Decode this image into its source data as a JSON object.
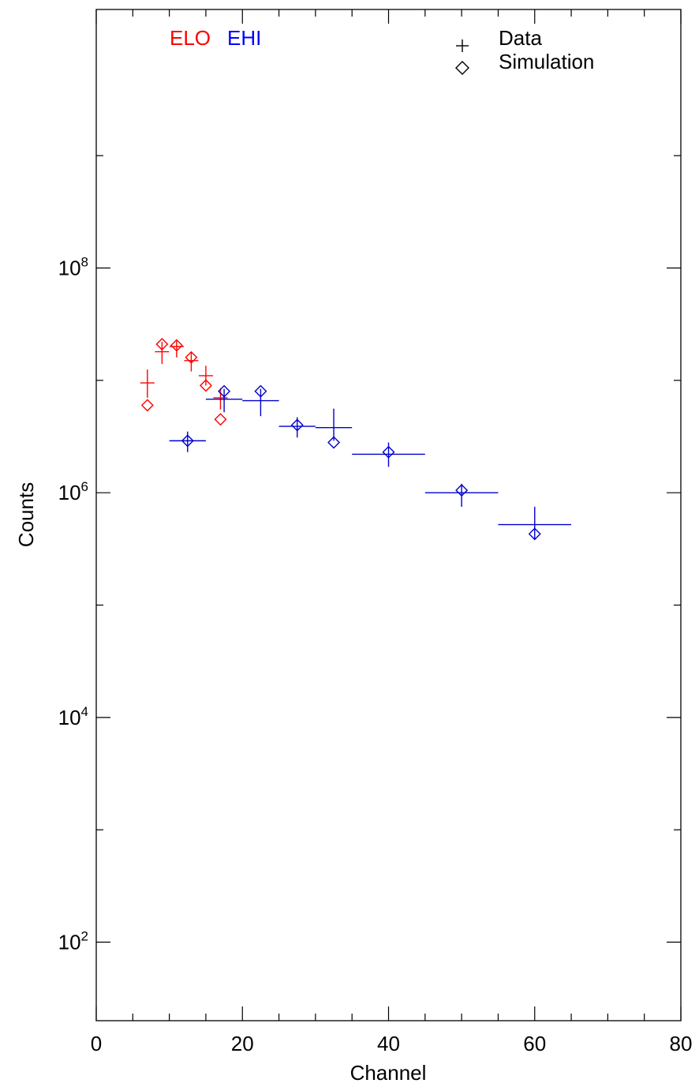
{
  "chart_data": {
    "type": "scatter",
    "title": "",
    "xlabel": "Channel",
    "ylabel": "Counts",
    "xlim": [
      0,
      80
    ],
    "ylim": [
      20,
      20000000000
    ],
    "yscale": "log",
    "grid": false,
    "x_ticks": [
      0,
      20,
      40,
      60,
      80
    ],
    "x_minor_step": 5,
    "y_ticks": [
      {
        "value": 100,
        "base": "10",
        "exp": "2"
      },
      {
        "value": 10000,
        "base": "10",
        "exp": "4"
      },
      {
        "value": 1000000,
        "base": "10",
        "exp": "6"
      },
      {
        "value": 100000000,
        "base": "10",
        "exp": "8"
      }
    ],
    "y_minor_ticks": [
      1000,
      100000,
      10000000,
      1000000000
    ],
    "channel_labels": [
      {
        "text": "ELO",
        "color": "#ff0000"
      },
      {
        "text": "EHI",
        "color": "#0000ff"
      }
    ],
    "legend": {
      "placement": "top-right",
      "entries": [
        {
          "label": "Data",
          "marker": "plus"
        },
        {
          "label": "Simulation",
          "marker": "diamond"
        }
      ]
    },
    "series": [
      {
        "name": "ELO",
        "color": "#ff0000",
        "data": [
          {
            "x": 7,
            "xerr": 0,
            "y": 9500000,
            "ylo": 7000000,
            "yhi": 12500000
          },
          {
            "x": 9,
            "xerr": 0,
            "y": 18000000,
            "ylo": 14000000,
            "yhi": 22000000
          },
          {
            "x": 11,
            "xerr": 0,
            "y": 20000000,
            "ylo": 16000000,
            "yhi": 23000000
          },
          {
            "x": 13,
            "xerr": 0,
            "y": 15000000,
            "ylo": 12000000,
            "yhi": 18000000
          },
          {
            "x": 15,
            "xerr": 0,
            "y": 11000000,
            "ylo": 9000000,
            "yhi": 13500000
          },
          {
            "x": 17,
            "xerr": 0,
            "y": 7000000,
            "ylo": 5500000,
            "yhi": 8500000
          }
        ],
        "simulation": [
          {
            "x": 7,
            "y": 6000000
          },
          {
            "x": 9,
            "y": 21000000
          },
          {
            "x": 11,
            "y": 20500000
          },
          {
            "x": 13,
            "y": 16000000
          },
          {
            "x": 15,
            "y": 9000000
          },
          {
            "x": 17,
            "y": 4500000
          }
        ]
      },
      {
        "name": "EHI",
        "color": "#0000cc",
        "data": [
          {
            "x": 12.5,
            "xerr": 2.5,
            "y": 2900000,
            "ylo": 2300000,
            "yhi": 3500000
          },
          {
            "x": 17.5,
            "xerr": 2.5,
            "y": 6800000,
            "ylo": 5200000,
            "yhi": 8400000
          },
          {
            "x": 22.5,
            "xerr": 2.5,
            "y": 6600000,
            "ylo": 4800000,
            "yhi": 8400000
          },
          {
            "x": 27.5,
            "xerr": 2.5,
            "y": 3900000,
            "ylo": 3100000,
            "yhi": 4700000
          },
          {
            "x": 32.5,
            "xerr": 2.5,
            "y": 3800000,
            "ylo": 2900000,
            "yhi": 5600000
          },
          {
            "x": 40,
            "xerr": 5,
            "y": 2200000,
            "ylo": 1700000,
            "yhi": 2800000
          },
          {
            "x": 50,
            "xerr": 5,
            "y": 1000000,
            "ylo": 750000,
            "yhi": 1200000
          },
          {
            "x": 60,
            "xerr": 5,
            "y": 520000,
            "ylo": 380000,
            "yhi": 750000
          }
        ],
        "simulation": [
          {
            "x": 12.5,
            "y": 2900000
          },
          {
            "x": 17.5,
            "y": 8000000
          },
          {
            "x": 22.5,
            "y": 8000000
          },
          {
            "x": 27.5,
            "y": 4000000
          },
          {
            "x": 32.5,
            "y": 2800000
          },
          {
            "x": 40,
            "y": 2300000
          },
          {
            "x": 50,
            "y": 1050000
          },
          {
            "x": 60,
            "y": 430000
          }
        ]
      }
    ]
  }
}
